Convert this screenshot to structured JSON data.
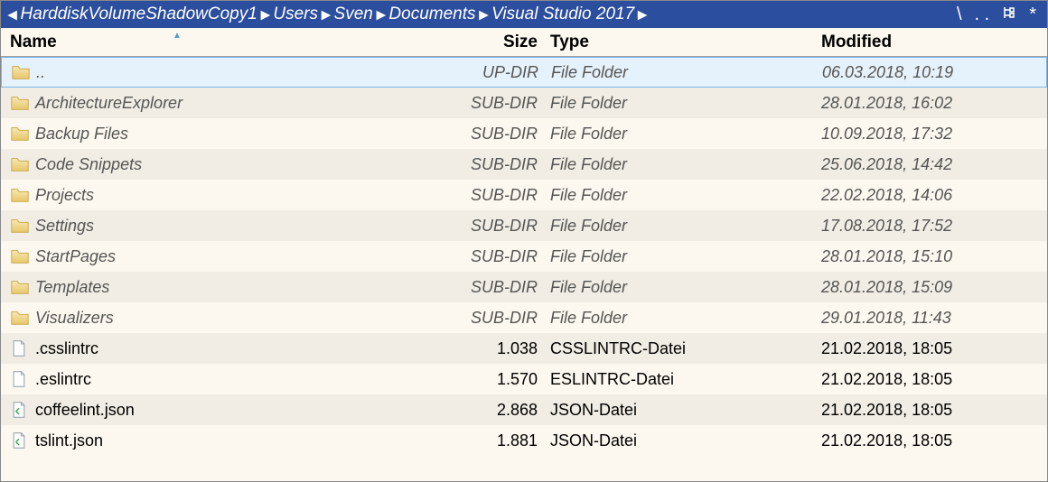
{
  "colors": {
    "breadcrumb_bg": "#2c4e9e",
    "breadcrumb_fg": "#ffffff",
    "bg": "#fdf8ef",
    "stripe": "#f1ede4",
    "selected_bg": "#e6f2fb",
    "selected_border": "#7ab7e8",
    "dir_text": "#555555",
    "file_text": "#000000",
    "header_border": "#a0a0a0",
    "folder_fill1": "#f7e7b3",
    "folder_fill2": "#e8c76a",
    "file_fill": "#ffffff",
    "file_border": "#9aa5b1"
  },
  "breadcrumb": {
    "segments": [
      "HarddiskVolumeShadowCopy1",
      "Users",
      "Sven",
      "Documents",
      "Visual Studio 2017"
    ],
    "toolbar": {
      "sep": "\\",
      "dots": ". .",
      "tree": "⿴",
      "star": "*"
    }
  },
  "columns": {
    "name": "Name",
    "size": "Size",
    "type": "Type",
    "modified": "Modified"
  },
  "rows": [
    {
      "kind": "updir",
      "selected": true,
      "icon": "folder",
      "name": "..",
      "size": "UP-DIR",
      "type": "File Folder",
      "modified": "06.03.2018, 10:19"
    },
    {
      "kind": "dir",
      "icon": "folder",
      "name": "ArchitectureExplorer",
      "size": "SUB-DIR",
      "type": "File Folder",
      "modified": "28.01.2018, 16:02"
    },
    {
      "kind": "dir",
      "icon": "folder",
      "name": "Backup Files",
      "size": "SUB-DIR",
      "type": "File Folder",
      "modified": "10.09.2018, 17:32"
    },
    {
      "kind": "dir",
      "icon": "folder",
      "name": "Code Snippets",
      "size": "SUB-DIR",
      "type": "File Folder",
      "modified": "25.06.2018, 14:42"
    },
    {
      "kind": "dir",
      "icon": "folder",
      "name": "Projects",
      "size": "SUB-DIR",
      "type": "File Folder",
      "modified": "22.02.2018, 14:06"
    },
    {
      "kind": "dir",
      "icon": "folder",
      "name": "Settings",
      "size": "SUB-DIR",
      "type": "File Folder",
      "modified": "17.08.2018, 17:52"
    },
    {
      "kind": "dir",
      "icon": "folder",
      "name": "StartPages",
      "size": "SUB-DIR",
      "type": "File Folder",
      "modified": "28.01.2018, 15:10"
    },
    {
      "kind": "dir",
      "icon": "folder",
      "name": "Templates",
      "size": "SUB-DIR",
      "type": "File Folder",
      "modified": "28.01.2018, 15:09"
    },
    {
      "kind": "dir",
      "icon": "folder",
      "name": "Visualizers",
      "size": "SUB-DIR",
      "type": "File Folder",
      "modified": "29.01.2018, 11:43"
    },
    {
      "kind": "file",
      "icon": "file",
      "name": ".csslintrc",
      "size": "1.038",
      "type": "CSSLINTRC-Datei",
      "modified": "21.02.2018, 18:05"
    },
    {
      "kind": "file",
      "icon": "file",
      "name": ".eslintrc",
      "size": "1.570",
      "type": "ESLINTRC-Datei",
      "modified": "21.02.2018, 18:05"
    },
    {
      "kind": "file",
      "icon": "json",
      "name": "coffeelint.json",
      "size": "2.868",
      "type": "JSON-Datei",
      "modified": "21.02.2018, 18:05"
    },
    {
      "kind": "file",
      "icon": "json",
      "name": "tslint.json",
      "size": "1.881",
      "type": "JSON-Datei",
      "modified": "21.02.2018, 18:05"
    }
  ]
}
